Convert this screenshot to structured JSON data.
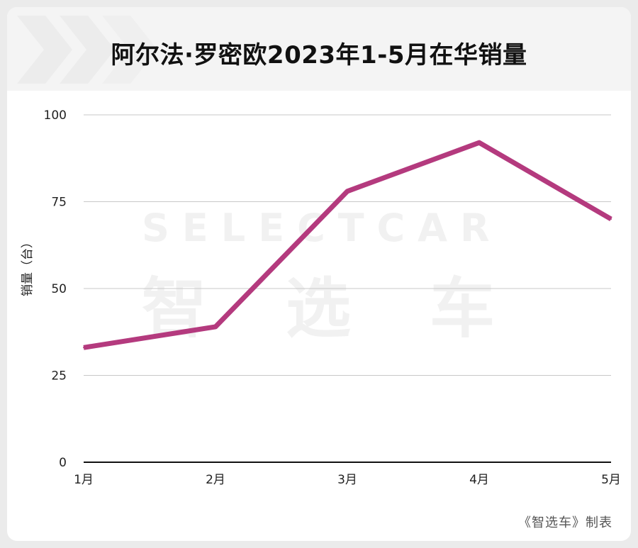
{
  "title": "阿尔法·罗密欧2023年1-5月在华销量",
  "watermark": {
    "latin": "SELECTCAR",
    "cjk": [
      "智",
      "选",
      "车"
    ]
  },
  "credit": "《智选车》制表",
  "colors": {
    "line": "#b43a7e",
    "grid": "#c8c8c8",
    "axis": "#111111"
  },
  "chart_data": {
    "type": "line",
    "categories": [
      "1月",
      "2月",
      "3月",
      "4月",
      "5月"
    ],
    "series": [
      {
        "values": [
          33,
          39,
          78,
          92,
          70
        ]
      }
    ],
    "ylabel": "销量（台）",
    "xlabel": "",
    "ylim": [
      0,
      100
    ],
    "yticks": [
      0,
      25,
      50,
      75,
      100
    ],
    "grid": true
  }
}
